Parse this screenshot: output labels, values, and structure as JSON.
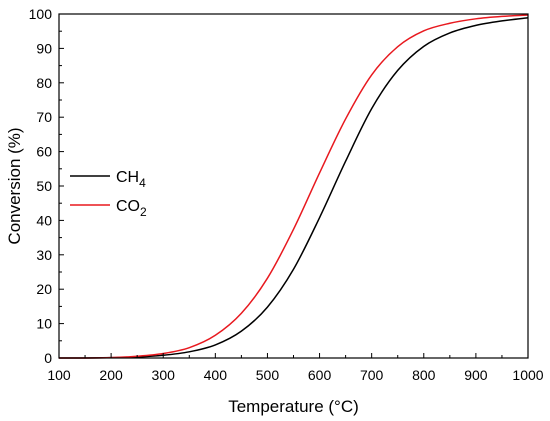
{
  "chart_data": {
    "type": "line",
    "title": "",
    "xlabel": "Temperature (°C)",
    "ylabel": "Conversion (%)",
    "xlim": [
      100,
      1000
    ],
    "ylim": [
      0,
      100
    ],
    "xticks": [
      100,
      200,
      300,
      400,
      500,
      600,
      700,
      800,
      900,
      1000
    ],
    "yticks": [
      0,
      10,
      20,
      30,
      40,
      50,
      60,
      70,
      80,
      90,
      100
    ],
    "grid": false,
    "legend_position": "center-left",
    "series": [
      {
        "name": "CH4",
        "label_base": "CH",
        "label_sub": "4",
        "color": "#000000",
        "x": [
          100,
          150,
          200,
          250,
          300,
          350,
          400,
          450,
          500,
          550,
          600,
          650,
          700,
          750,
          800,
          850,
          900,
          950,
          1000
        ],
        "y": [
          0,
          0,
          0.1,
          0.3,
          0.8,
          1.8,
          3.8,
          7.8,
          14.8,
          25.8,
          40.8,
          57.2,
          72.5,
          83.6,
          90.6,
          94.5,
          96.7,
          98.0,
          98.9
        ]
      },
      {
        "name": "CO2",
        "label_base": "CO",
        "label_sub": "2",
        "color": "#e8191f",
        "x": [
          100,
          150,
          200,
          250,
          300,
          350,
          400,
          450,
          500,
          550,
          600,
          650,
          700,
          750,
          800,
          850,
          900,
          950,
          1000
        ],
        "y": [
          0,
          0,
          0.1,
          0.5,
          1.3,
          3.0,
          6.6,
          13.0,
          23.2,
          37.4,
          53.8,
          69.5,
          82.3,
          90.5,
          95.1,
          97.3,
          98.6,
          99.3,
          99.7
        ]
      }
    ]
  }
}
